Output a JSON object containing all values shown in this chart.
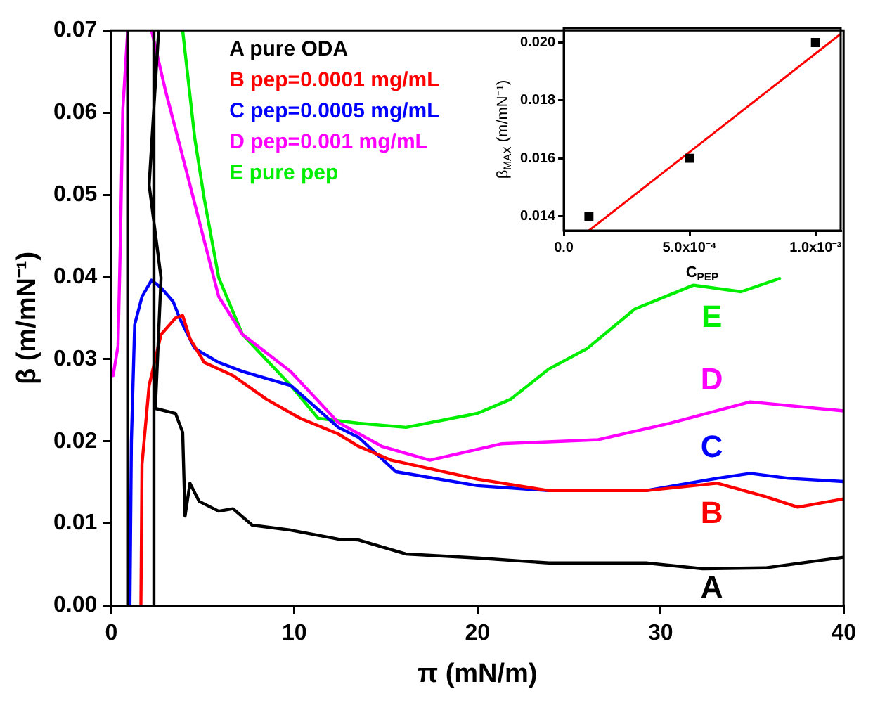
{
  "chart_data": [
    {
      "type": "line",
      "xlabel": "π (mN/m)",
      "ylabel": "β (m/mN⁻¹)",
      "xlim": [
        0,
        40
      ],
      "ylim": [
        0,
        0.07
      ],
      "xticks": [
        0,
        10,
        20,
        30,
        40
      ],
      "yticks": [
        {
          "value": 0,
          "label": "0.00"
        },
        {
          "value": 0.01,
          "label": "0.01"
        },
        {
          "value": 0.02,
          "label": "0.02"
        },
        {
          "value": 0.03,
          "label": "0.03"
        },
        {
          "value": 0.04,
          "label": "0.04"
        },
        {
          "value": 0.05,
          "label": "0.05"
        },
        {
          "value": 0.06,
          "label": "0.06"
        },
        {
          "value": 0.07,
          "label": "0.07"
        }
      ],
      "grid": false,
      "legend": "top left",
      "marker": "none",
      "line_style": "solid",
      "series": [
        {
          "name": "A pure ODA",
          "color": "#000000",
          "x": [
            0.9,
            0.9,
            null,
            2.33,
            2.33,
            null,
            2.59,
            2.07,
            2.72,
            2.41,
            3.51,
            3.9,
            4.03,
            4.3,
            4.8,
            5.87,
            6.65,
            7.7,
            9.8,
            12.4,
            13.5,
            16.08,
            20,
            23.9,
            29.2,
            32.3,
            35.7,
            40
          ],
          "values": [
            0,
            0.07,
            null,
            0,
            0.07,
            null,
            0.07,
            0.0512,
            0.0399,
            0.024,
            0.0234,
            0.0211,
            0.0109,
            0.0149,
            0.0127,
            0.0115,
            0.0118,
            0.0098,
            0.0092,
            0.0081,
            0.008,
            0.0063,
            0.0058,
            0.0052,
            0.0052,
            0.0045,
            0.0046,
            0.0059
          ]
        },
        {
          "name": "B pep=0.0001 mg/mL",
          "color": "#ff0000",
          "x": [
            1.62,
            1.68,
            2.07,
            2.72,
            3.51,
            3.9,
            4.3,
            5.08,
            6.65,
            8.49,
            10.32,
            12.4,
            13.5,
            15.3,
            20,
            23.9,
            29.2,
            33.1,
            35.7,
            37.5,
            40
          ],
          "values": [
            0,
            0.0172,
            0.0268,
            0.033,
            0.035,
            0.0353,
            0.0325,
            0.0296,
            0.028,
            0.0251,
            0.0228,
            0.0209,
            0.0194,
            0.0177,
            0.0154,
            0.014,
            0.014,
            0.0149,
            0.0133,
            0.012,
            0.013
          ]
        },
        {
          "name": "C pep=0.0005 mg/mL",
          "color": "#0000ff",
          "x": [
            1.02,
            1.1,
            1.28,
            1.68,
            2.2,
            2.72,
            3.38,
            3.77,
            4.56,
            5.87,
            7.17,
            9.8,
            12.4,
            13.5,
            15.55,
            20,
            23.9,
            29.2,
            33.1,
            34.9,
            37,
            40
          ],
          "values": [
            0,
            0.02,
            0.0342,
            0.0376,
            0.0396,
            0.0387,
            0.037,
            0.0348,
            0.0313,
            0.0296,
            0.0285,
            0.0268,
            0.0217,
            0.0205,
            0.0163,
            0.0146,
            0.014,
            0.014,
            0.0155,
            0.0161,
            0.0155,
            0.0151
          ]
        },
        {
          "name": "D pep=0.001 mg/mL",
          "color": "#ff00ff",
          "x": [
            0.1,
            0.37,
            0.5,
            0.63,
            0.9,
            null,
            2.2,
            2.98,
            3.51,
            4.3,
            5.08,
            5.87,
            7.17,
            9.8,
            12.4,
            14.77,
            17.4,
            21.3,
            26.6,
            30.5,
            34.9,
            40
          ],
          "values": [
            0.028,
            0.0316,
            0.0444,
            0.0603,
            0.07,
            null,
            0.07,
            0.0625,
            0.058,
            0.0512,
            0.0444,
            0.0376,
            0.033,
            0.0285,
            0.0223,
            0.0194,
            0.0177,
            0.0197,
            0.0202,
            0.0222,
            0.0248,
            0.0237
          ]
        },
        {
          "name": "E pure pep",
          "color": "#00ee00",
          "x": [
            3.9,
            4.56,
            5.08,
            5.87,
            7.17,
            9.8,
            11.3,
            13.5,
            16.1,
            20,
            21.8,
            23.9,
            26,
            28.6,
            31.8,
            34.4,
            36.5
          ],
          "values": [
            0.07,
            0.0569,
            0.0495,
            0.0399,
            0.033,
            0.0268,
            0.0228,
            0.0222,
            0.0217,
            0.0234,
            0.0251,
            0.0288,
            0.0313,
            0.0361,
            0.039,
            0.0382,
            0.0398
          ]
        }
      ],
      "annotations": [
        "A",
        "B",
        "C",
        "D",
        "E"
      ]
    },
    {
      "type": "scatter",
      "xlabel": "C$_{PEP}$",
      "ylabel": "β$_{MAX}$ (m/mN⁻¹)",
      "xlim": [
        0,
        0.0011
      ],
      "ylim": [
        0.0135,
        0.0205
      ],
      "xticks": [
        {
          "value": 0,
          "label": "0.0"
        },
        {
          "value": 0.0005,
          "label": "5.0x10⁻⁴"
        },
        {
          "value": 0.001,
          "label": "1.0x10⁻³"
        }
      ],
      "yticks": [
        {
          "value": 0.014,
          "label": "0.014"
        },
        {
          "value": 0.016,
          "label": "0.016"
        },
        {
          "value": 0.018,
          "label": "0.018"
        },
        {
          "value": 0.02,
          "label": "0.020"
        }
      ],
      "grid": false,
      "marker": "square",
      "series": [
        {
          "color": "#000000",
          "x": [
            0.0001,
            0.0005,
            0.001
          ],
          "values": [
            0.014,
            0.016,
            0.02
          ]
        },
        {
          "type": "line",
          "marker": "none",
          "color": "#ff0000",
          "x": [
            0.0001,
            0.0011
          ],
          "values": [
            0.0135,
            0.0203
          ]
        }
      ]
    }
  ]
}
